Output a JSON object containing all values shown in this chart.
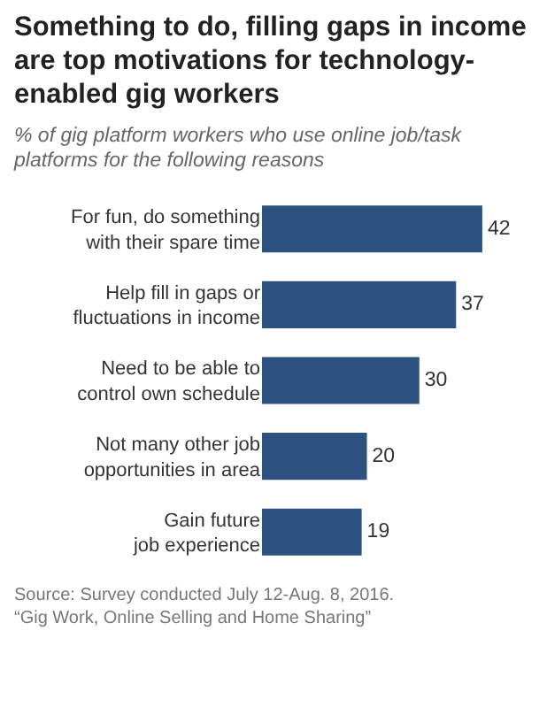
{
  "chart_data": {
    "type": "bar",
    "orientation": "horizontal",
    "title": "Something to do, filling gaps in income are top motivations for technology-enabled gig workers",
    "subtitle": "% of gig platform workers who use online job/task platforms for the following reasons",
    "categories": [
      "For fun, do something\nwith their spare time",
      "Help fill in gaps or\nfluctuations in income",
      "Need to be able to\ncontrol own schedule",
      "Not many other job\nopportunities in area",
      "Gain future\njob experience"
    ],
    "values": [
      42,
      37,
      30,
      20,
      19
    ],
    "color": "#2d5282",
    "data_labels": true,
    "tick_labels": "y",
    "grid": false,
    "legend": false,
    "annotations": [
      "Source: Survey conducted July 12-Aug. 8, 2016.\n“Gig Work, Online Selling and Home Sharing”"
    ]
  }
}
